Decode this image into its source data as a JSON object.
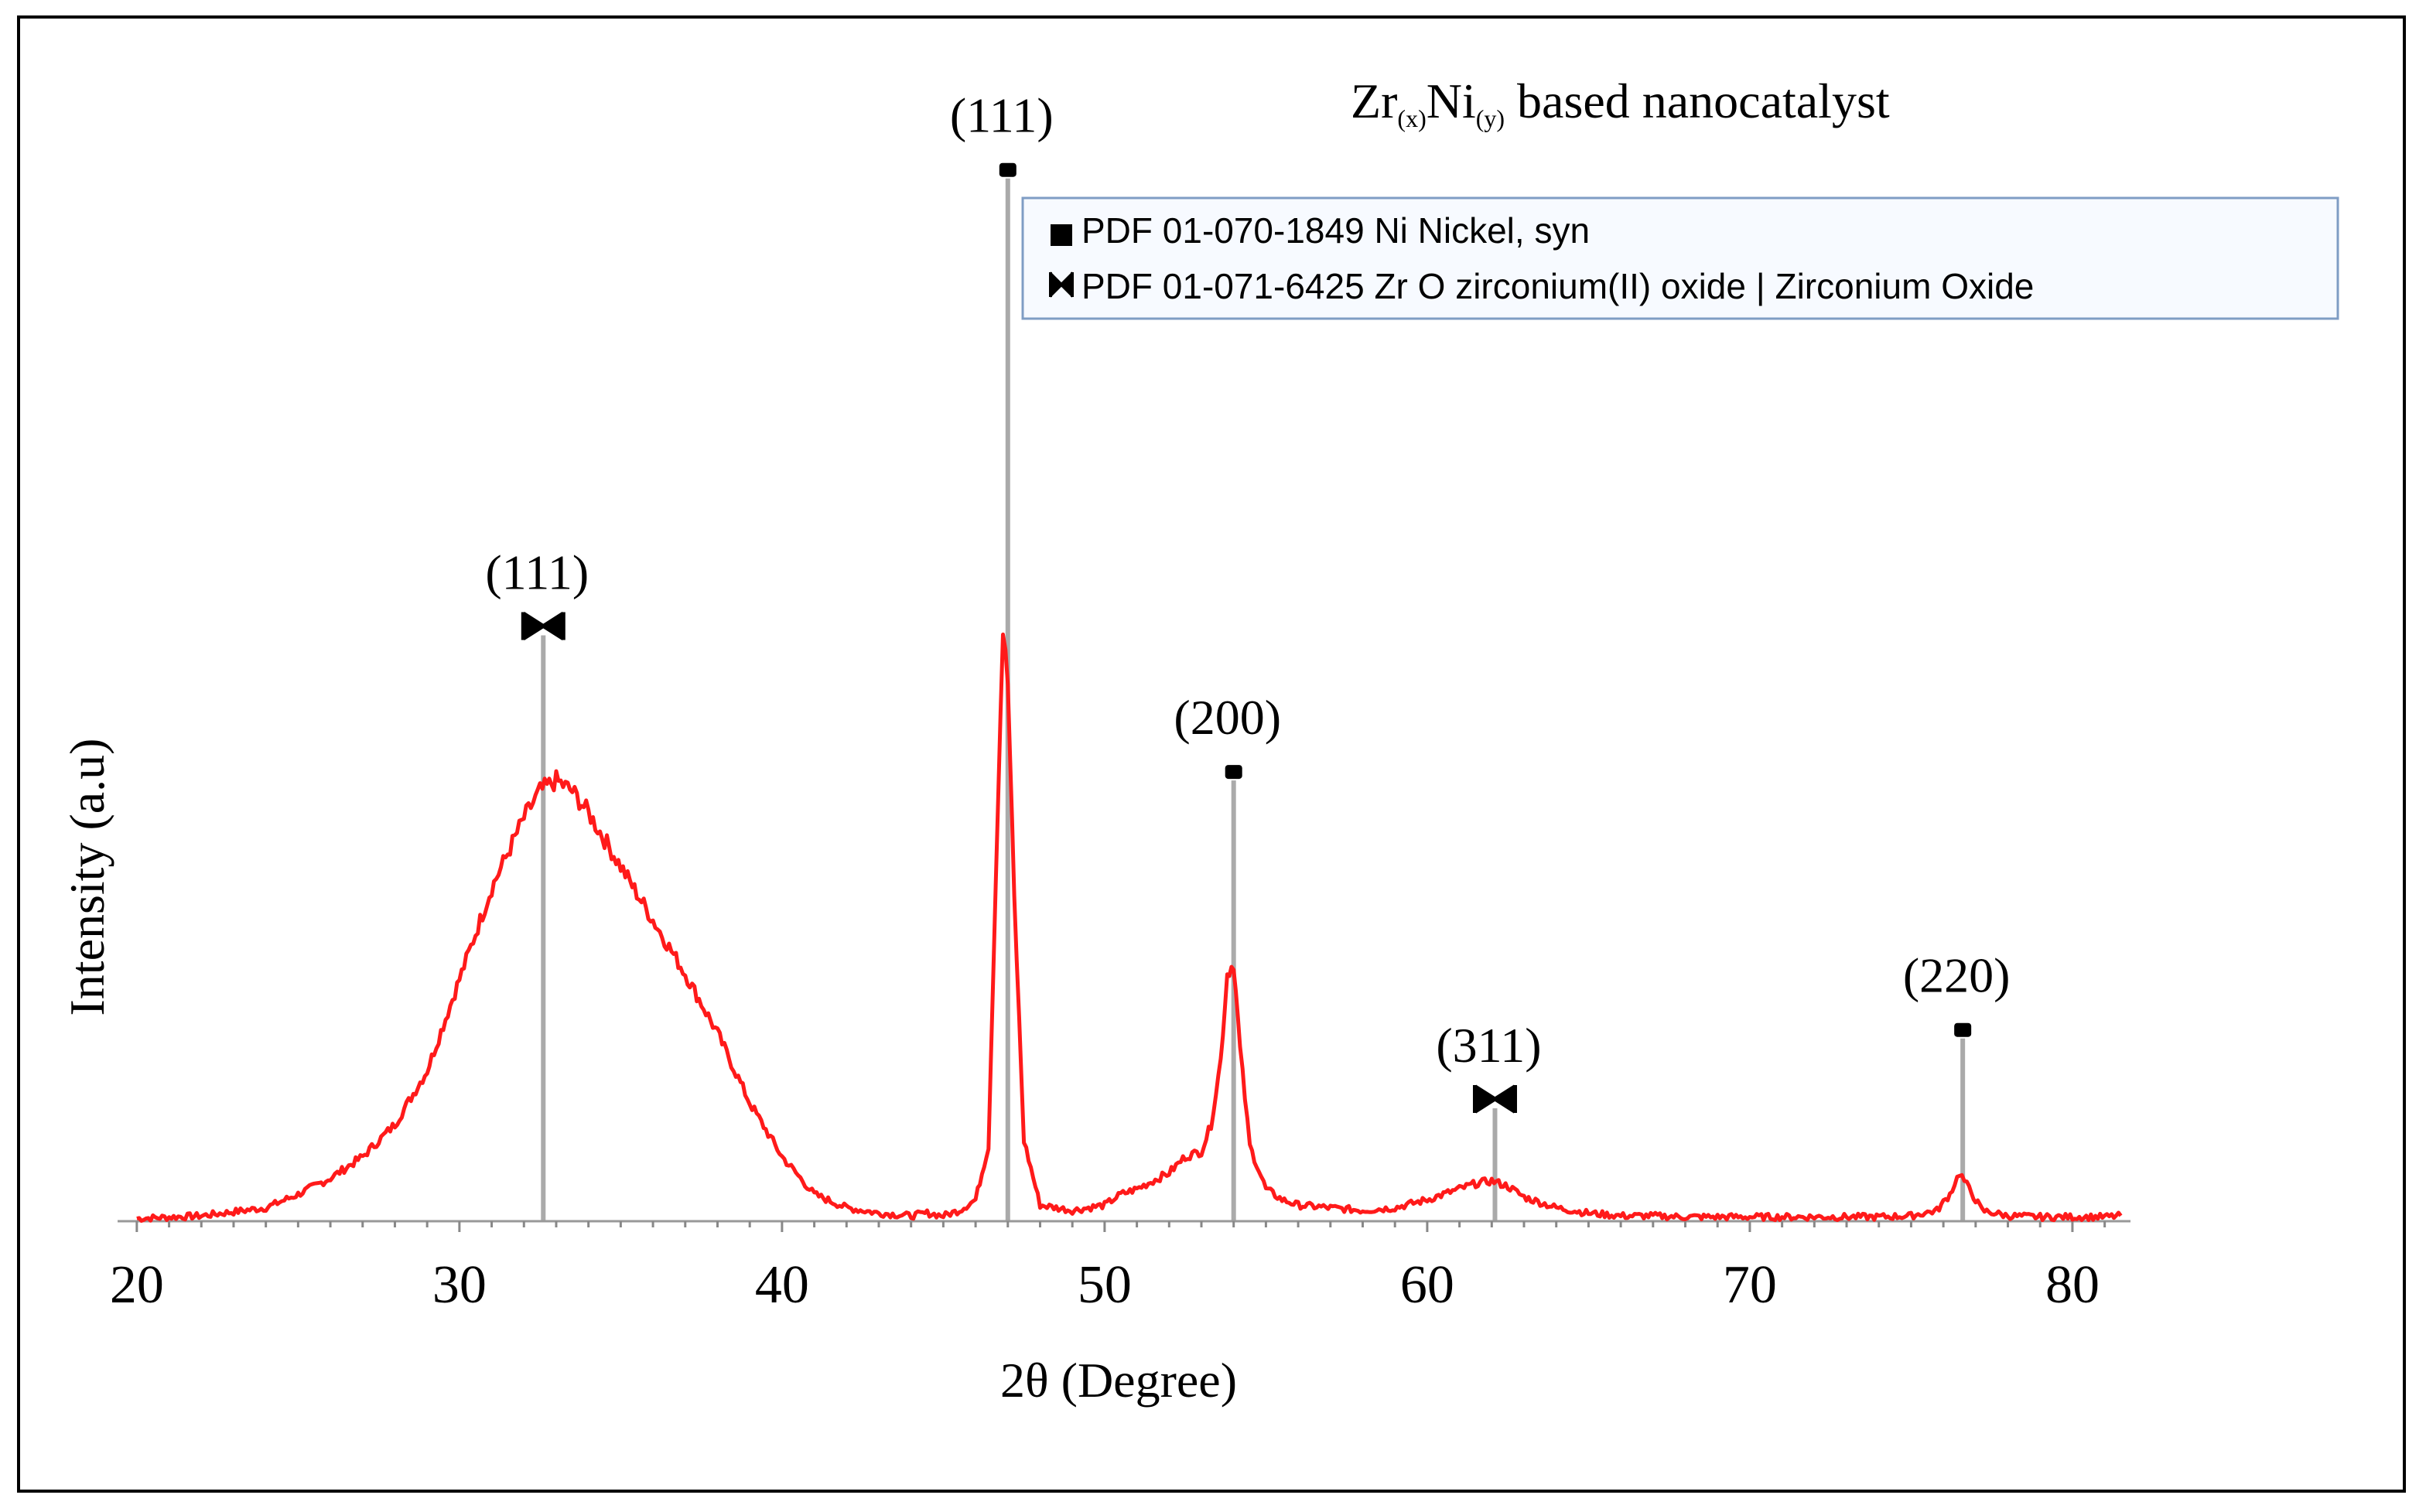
{
  "chart_data": {
    "type": "line",
    "title_parts": [
      "Zr",
      "(x)",
      "Ni",
      "(y)",
      " based nanocatalyst"
    ],
    "xlabel": "2θ (Degree)",
    "ylabel": "Intensity (a.u)",
    "xlim": [
      19.5,
      81.8
    ],
    "ylim": [
      0,
      100
    ],
    "xticks": [
      20,
      30,
      40,
      50,
      60,
      70,
      80
    ],
    "grid": false,
    "legend_position": "top-right",
    "legend": [
      {
        "marker": "square",
        "label": "PDF 01-070-1849 Ni Nickel, syn"
      },
      {
        "marker": "bowtie",
        "label": "PDF 01-071-6425 Zr O zirconium(II) oxide | Zirconium Oxide"
      }
    ],
    "reference_lines": [
      {
        "x": 32.6,
        "top": 109,
        "phase": "ZrO",
        "marker": "bowtie",
        "label": "(111)"
      },
      {
        "x": 47.0,
        "top": 194,
        "phase": "Ni",
        "marker": "square",
        "label": "(111)"
      },
      {
        "x": 54.0,
        "top": 82,
        "phase": "Ni",
        "marker": "square",
        "label": "(200)"
      },
      {
        "x": 62.1,
        "top": 21,
        "phase": "ZrO",
        "marker": "bowtie",
        "label": "(311)"
      },
      {
        "x": 76.6,
        "top": 34,
        "phase": "Ni",
        "marker": "square",
        "label": "(220)"
      }
    ],
    "series": [
      {
        "color": "#ff1a1a",
        "x": [
          20,
          22,
          24,
          25,
          26,
          27,
          28,
          29,
          30,
          31,
          32,
          32.5,
          33,
          33.5,
          34,
          35,
          36,
          37,
          38,
          39,
          40,
          41,
          42,
          43,
          44,
          44.5,
          45,
          45.5,
          46,
          46.4,
          46.7,
          46.85,
          47.0,
          47.2,
          47.5,
          48,
          49,
          50,
          50.5,
          51,
          52,
          52.5,
          53,
          53.3,
          53.6,
          53.8,
          54.0,
          54.2,
          54.5,
          55,
          55.5,
          56,
          57,
          58,
          59,
          60,
          61,
          61.5,
          62,
          62.5,
          63,
          64,
          65,
          66,
          67,
          68,
          69,
          70,
          71,
          72,
          73,
          74,
          75,
          75.8,
          76.2,
          76.5,
          76.8,
          77.2,
          78,
          79,
          80,
          81,
          81.5
        ],
        "y": [
          0.5,
          1,
          2.5,
          5,
          8,
          12,
          18,
          28,
          45,
          62,
          75,
          80,
          82,
          80,
          76,
          66,
          56,
          46,
          35,
          22,
          12,
          5,
          2.5,
          1.5,
          1,
          1.5,
          1,
          2,
          4,
          14,
          80,
          110,
          100,
          60,
          15,
          3,
          2,
          3,
          5,
          6,
          9,
          12,
          13,
          18,
          30,
          46,
          48,
          32,
          14,
          6,
          4,
          3,
          2.5,
          2,
          2.5,
          4,
          6,
          7,
          7.5,
          6.5,
          4.5,
          2.5,
          1.5,
          1,
          1,
          0.8,
          0.8,
          0.8,
          0.8,
          0.8,
          0.8,
          0.8,
          1,
          2,
          5,
          9,
          6,
          2,
          1,
          0.8,
          0.8,
          0.8,
          1
        ]
      }
    ]
  }
}
